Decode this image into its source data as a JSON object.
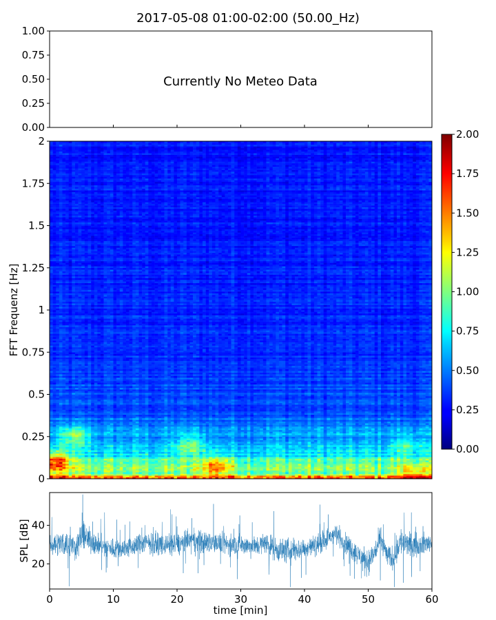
{
  "title": "2017-05-08 01:00-02:00 (50.00_Hz)",
  "chart_data": [
    {
      "type": "line",
      "panel": "meteo",
      "annotation": "Currently No Meteo Data",
      "ylim": [
        0,
        1
      ],
      "yticks": [
        "0.00",
        "0.25",
        "0.50",
        "0.75",
        "1.00"
      ],
      "x": [],
      "values": []
    },
    {
      "type": "heatmap",
      "panel": "spectrogram",
      "ylabel": "FFT Frequenz [Hz]",
      "xlim": [
        0,
        60
      ],
      "ylim": [
        0,
        2
      ],
      "yticks": [
        "0",
        "0.25",
        "0.5",
        "0.75",
        "1",
        "1.25",
        "1.5",
        "1.75",
        "2"
      ],
      "colormap": "jet",
      "colorbar": {
        "range": [
          0,
          2
        ],
        "ticks": [
          "0.00",
          "0.25",
          "0.50",
          "0.75",
          "1.00",
          "1.25",
          "1.50",
          "1.75",
          "2.00"
        ]
      },
      "profile": {
        "freq_hz": [
          0,
          0.02,
          0.05,
          0.1,
          0.15,
          0.25,
          0.4,
          0.6,
          1.0,
          2.0
        ],
        "typical_level": [
          1.6,
          1.15,
          1.0,
          0.85,
          0.7,
          0.55,
          0.4,
          0.35,
          0.3,
          0.28
        ]
      },
      "hotspots": [
        {
          "t_min": 1,
          "f_hz": 0.1,
          "level": 1.6
        },
        {
          "t_min": 4,
          "f_hz": 0.25,
          "level": 1.0
        },
        {
          "t_min": 22,
          "f_hz": 0.2,
          "level": 1.0
        },
        {
          "t_min": 26,
          "f_hz": 0.07,
          "level": 1.5
        },
        {
          "t_min": 56,
          "f_hz": 0.2,
          "level": 0.9
        },
        {
          "t_min": 57,
          "f_hz": 0.02,
          "level": 1.6
        }
      ]
    },
    {
      "type": "line",
      "panel": "spl",
      "xlabel": "time [min]",
      "ylabel": "SPL [dB]",
      "xlim": [
        0,
        60
      ],
      "ylim": [
        7,
        57
      ],
      "xticks": [
        "0",
        "10",
        "20",
        "30",
        "40",
        "50",
        "60"
      ],
      "yticks": [
        "20",
        "40"
      ],
      "color": "#1f77b4",
      "series": [
        {
          "x": [
            0,
            2,
            4,
            5,
            6,
            8,
            10,
            12,
            15,
            18,
            20,
            22,
            24,
            26,
            28,
            30,
            32,
            34,
            36,
            38,
            40,
            42,
            44,
            45,
            46,
            48,
            50,
            51,
            52,
            53,
            54,
            55,
            56,
            58,
            60
          ],
          "values": [
            30,
            31,
            29,
            34,
            33,
            29,
            28,
            28,
            31,
            30,
            30,
            32,
            31,
            31,
            30,
            30,
            29,
            31,
            27,
            27,
            28,
            30,
            34,
            36,
            32,
            26,
            21,
            26,
            33,
            24,
            23,
            32,
            30,
            30,
            31
          ],
          "spread": [
            5,
            6,
            6,
            7,
            6,
            5,
            5,
            5,
            5,
            5,
            5,
            6,
            6,
            5,
            5,
            5,
            5,
            5,
            6,
            6,
            5,
            5,
            5,
            5,
            5,
            5,
            6,
            6,
            6,
            5,
            6,
            7,
            6,
            5,
            5
          ]
        }
      ]
    }
  ]
}
